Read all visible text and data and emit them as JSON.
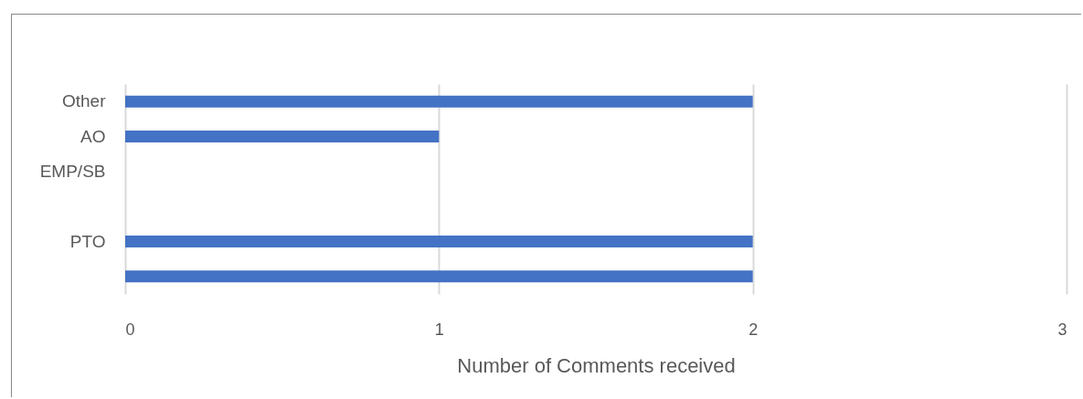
{
  "chart_data": {
    "type": "bar",
    "orientation": "horizontal",
    "xlabel": "Number of Comments received",
    "categories": [
      "Other",
      "AO",
      "EMP/SB",
      null,
      "PTO",
      null
    ],
    "values": [
      2,
      1,
      0,
      0,
      2,
      2
    ],
    "color": "#4472c4",
    "xlim": [
      0,
      3
    ],
    "xticks": [
      0,
      1,
      2,
      3
    ],
    "grid": "x"
  }
}
